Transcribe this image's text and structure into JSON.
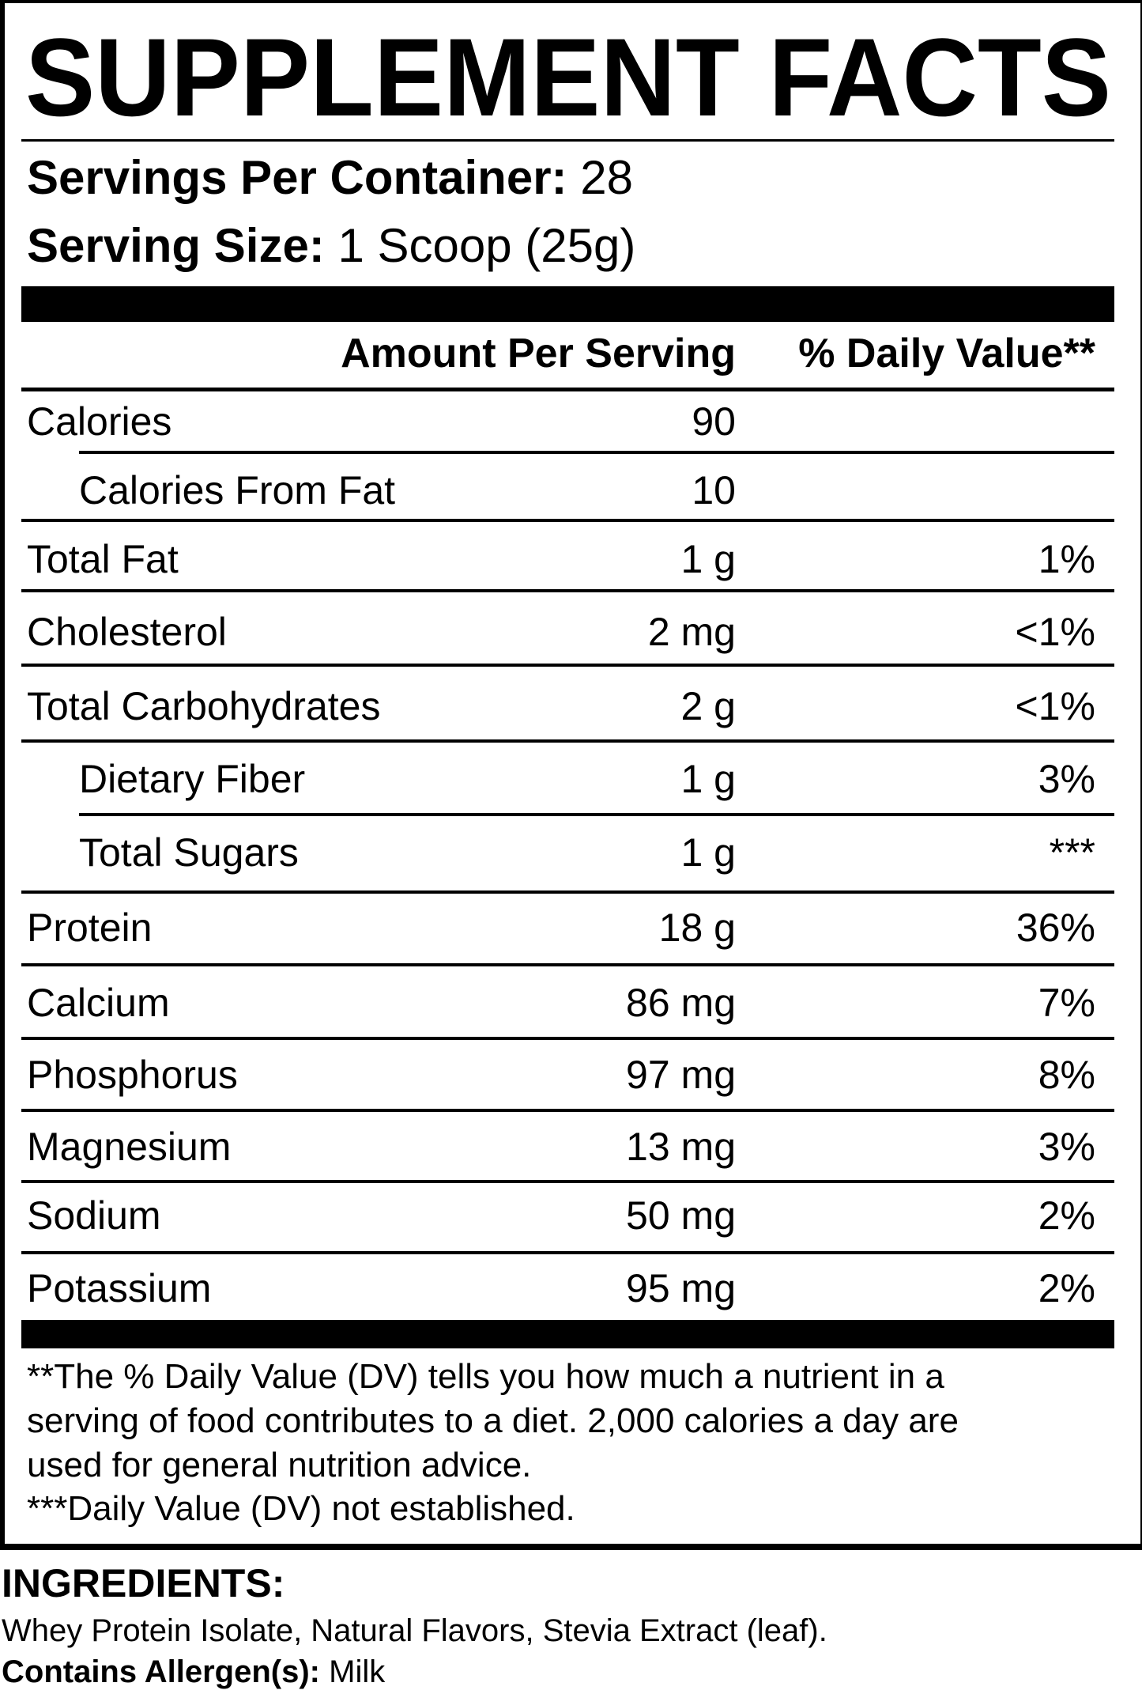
{
  "title": "SUPPLEMENT FACTS",
  "servings_per_container": {
    "label": "Servings Per Container:",
    "value": "28"
  },
  "serving_size": {
    "label": "Serving Size:",
    "value": "1 Scoop (25g)"
  },
  "header": {
    "amount": "Amount Per Serving",
    "daily_value": "% Daily Value**"
  },
  "rows": [
    {
      "name": "Calories",
      "amount": "90",
      "dv": ""
    },
    {
      "name": "Calories From Fat",
      "amount": "10",
      "dv": ""
    },
    {
      "name": "Total Fat",
      "amount": "1 g",
      "dv": "1%"
    },
    {
      "name": "Cholesterol",
      "amount": "2 mg",
      "dv": "<1%"
    },
    {
      "name": "Total Carbohydrates",
      "amount": "2 g",
      "dv": "<1%"
    },
    {
      "name": "Dietary Fiber",
      "amount": "1 g",
      "dv": "3%"
    },
    {
      "name": "Total Sugars",
      "amount": "1 g",
      "dv": "***"
    },
    {
      "name": "Protein",
      "amount": "18 g",
      "dv": "36%"
    },
    {
      "name": "Calcium",
      "amount": "86 mg",
      "dv": "7%"
    },
    {
      "name": "Phosphorus",
      "amount": "97 mg",
      "dv": "8%"
    },
    {
      "name": "Magnesium",
      "amount": "13 mg",
      "dv": "3%"
    },
    {
      "name": "Sodium",
      "amount": "50 mg",
      "dv": "2%"
    },
    {
      "name": "Potassium",
      "amount": "95 mg",
      "dv": "2%"
    }
  ],
  "footnotes": [
    "**The % Daily Value (DV) tells you how much a nutrient in a",
    "serving of food contributes to a diet. 2,000 calories a day are",
    "used for general nutrition advice.",
    "***Daily Value (DV) not established."
  ],
  "ingredients": {
    "heading": "INGREDIENTS:",
    "text": "Whey Protein Isolate, Natural Flavors, Stevia Extract (leaf).",
    "allergen_label": "Contains Allergen(s):",
    "allergen_value": "Milk"
  }
}
